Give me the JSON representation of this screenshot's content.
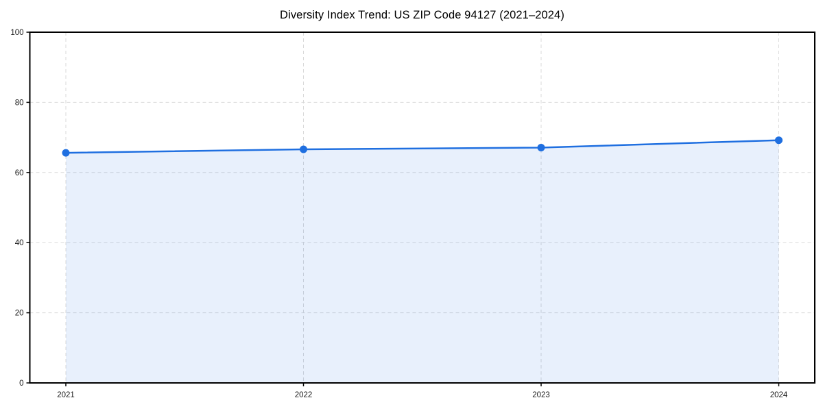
{
  "chart_data": {
    "type": "area",
    "title": "Diversity Index Trend: US ZIP Code 94127 (2021–2024)",
    "categories": [
      "2021",
      "2022",
      "2023",
      "2024"
    ],
    "series": [
      {
        "name": "Diversity Index",
        "values": [
          65.6,
          66.6,
          67.1,
          69.2
        ]
      }
    ],
    "values": [
      65.6,
      66.6,
      67.1,
      69.2
    ],
    "xlabel": "",
    "ylabel": "",
    "ylim": [
      0,
      100
    ],
    "yticks": [
      0,
      20,
      40,
      60,
      80,
      100
    ],
    "grid": "on",
    "grid_style": "dashed",
    "legend_position": "none",
    "marker": "circle",
    "colors": {
      "line": "#1f6fe0",
      "fill": "#1f6fe0",
      "fill_opacity": 0.1,
      "grid": "#d9d9d9",
      "spine": "#000000",
      "tick_label": "#1a1a1a",
      "title": "#000000",
      "background": "#ffffff"
    }
  }
}
